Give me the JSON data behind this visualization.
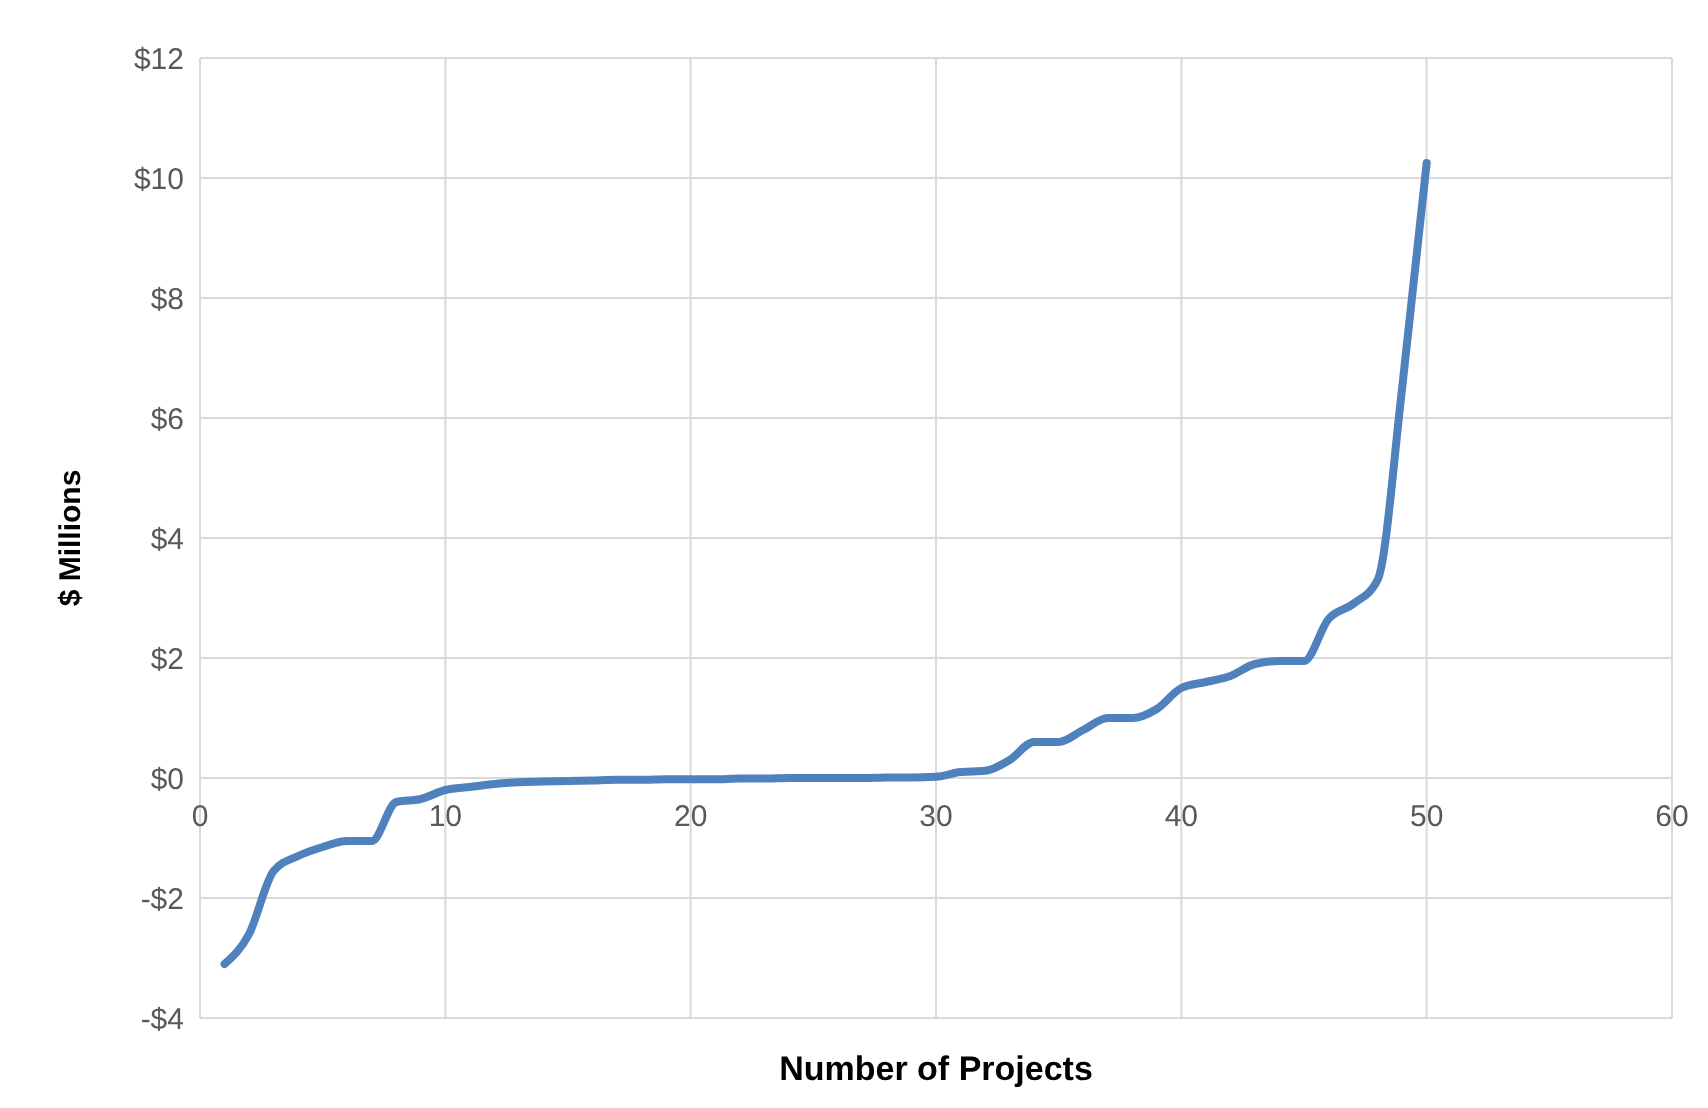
{
  "chart_data": {
    "type": "line",
    "xlabel": "Number of Projects",
    "ylabel": "$ Millions",
    "x": [
      1,
      2,
      3,
      4,
      5,
      6,
      7,
      8,
      9,
      10,
      11,
      12,
      13,
      14,
      15,
      16,
      17,
      18,
      19,
      20,
      21,
      22,
      23,
      24,
      25,
      26,
      27,
      28,
      29,
      30,
      31,
      32,
      33,
      34,
      35,
      36,
      37,
      38,
      39,
      40,
      41,
      42,
      43,
      44,
      45,
      46,
      47,
      48,
      49,
      50
    ],
    "series": [
      {
        "color": "#4f81bd",
        "values": [
          -3.1,
          -2.6,
          -1.55,
          -1.3,
          -1.15,
          -1.05,
          -1.05,
          -0.4,
          -0.35,
          -0.2,
          -0.15,
          -0.1,
          -0.07,
          -0.06,
          -0.05,
          -0.04,
          -0.03,
          -0.03,
          -0.02,
          -0.02,
          -0.02,
          -0.01,
          -0.01,
          0,
          0,
          0,
          0,
          0.01,
          0.01,
          0.02,
          0.1,
          0.12,
          0.3,
          0.6,
          0.6,
          0.8,
          1.0,
          1.0,
          1.15,
          1.5,
          1.6,
          1.7,
          1.9,
          1.95,
          1.95,
          2.65,
          2.9,
          3.3,
          6.5,
          10.25
        ]
      }
    ],
    "xlim": [
      0,
      60
    ],
    "xticks": [
      0,
      10,
      20,
      30,
      40,
      50,
      60
    ],
    "ylim": [
      -4,
      12
    ],
    "yticks": [
      {
        "value": -4,
        "label": "-$4"
      },
      {
        "value": -2,
        "label": "-$2"
      },
      {
        "value": 0,
        "label": "$0"
      },
      {
        "value": 2,
        "label": "$2"
      },
      {
        "value": 4,
        "label": "$4"
      },
      {
        "value": 6,
        "label": "$6"
      },
      {
        "value": 8,
        "label": "$8"
      },
      {
        "value": 10,
        "label": "$10"
      },
      {
        "value": 12,
        "label": "$12"
      }
    ],
    "grid": true,
    "line_style": "solid",
    "marker": "none"
  }
}
